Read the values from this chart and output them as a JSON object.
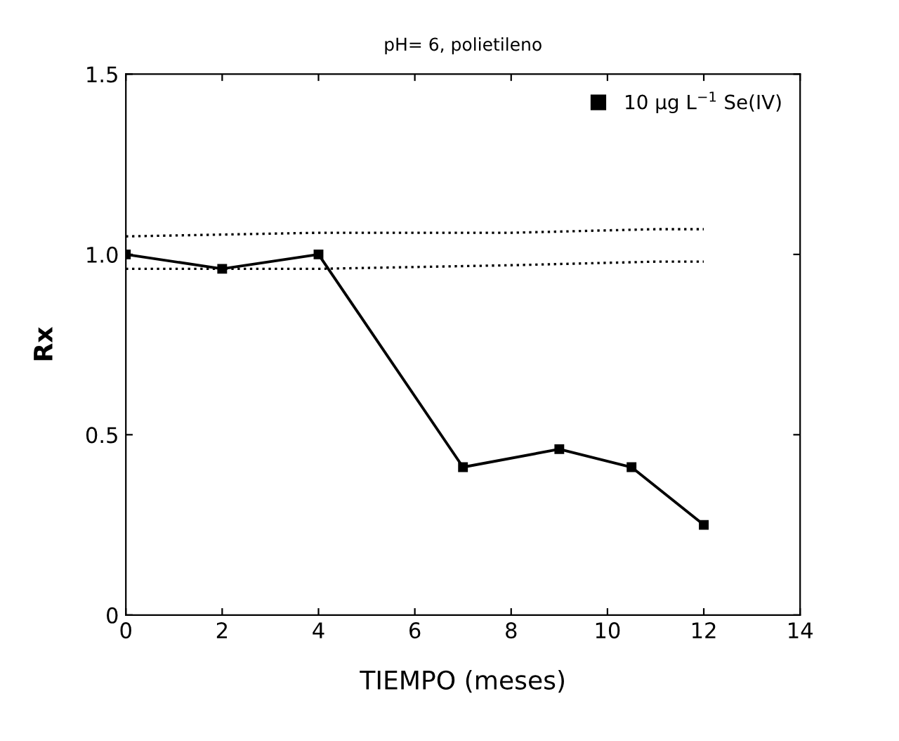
{
  "chart_data": {
    "type": "line",
    "title": "pH= 6, polietileno",
    "xlabel": "TIEMPO (meses)",
    "ylabel": "Rx",
    "xlim": [
      0,
      14
    ],
    "xticks": [
      0,
      2,
      4,
      6,
      8,
      10,
      12,
      14
    ],
    "ylim": [
      0,
      1.5
    ],
    "yticks": [
      {
        "value": 0,
        "label": "0"
      },
      0.5,
      {
        "value": 1.0,
        "label": "1.0"
      },
      1.5
    ],
    "legend": "top right",
    "grid": false,
    "series": [
      {
        "name": "10 µg L$^{−1}$ Se(IV)",
        "color": "#000000",
        "x": [
          0,
          2,
          4,
          7,
          9,
          10.5,
          12
        ],
        "values": [
          1.0,
          0.96,
          1.0,
          0.41,
          0.46,
          0.41,
          0.25
        ],
        "marker": "square",
        "line_style": "solid"
      },
      {
        "color": "#000000",
        "x": [
          0,
          4,
          8,
          11,
          12
        ],
        "values": [
          1.05,
          1.06,
          1.06,
          1.07,
          1.07
        ],
        "marker": "none",
        "line_style": "dotted"
      },
      {
        "color": "#000000",
        "x": [
          0,
          4,
          8,
          11,
          12
        ],
        "values": [
          0.96,
          0.96,
          0.97,
          0.98,
          0.98
        ],
        "marker": "none",
        "line_style": "dotted"
      }
    ]
  }
}
